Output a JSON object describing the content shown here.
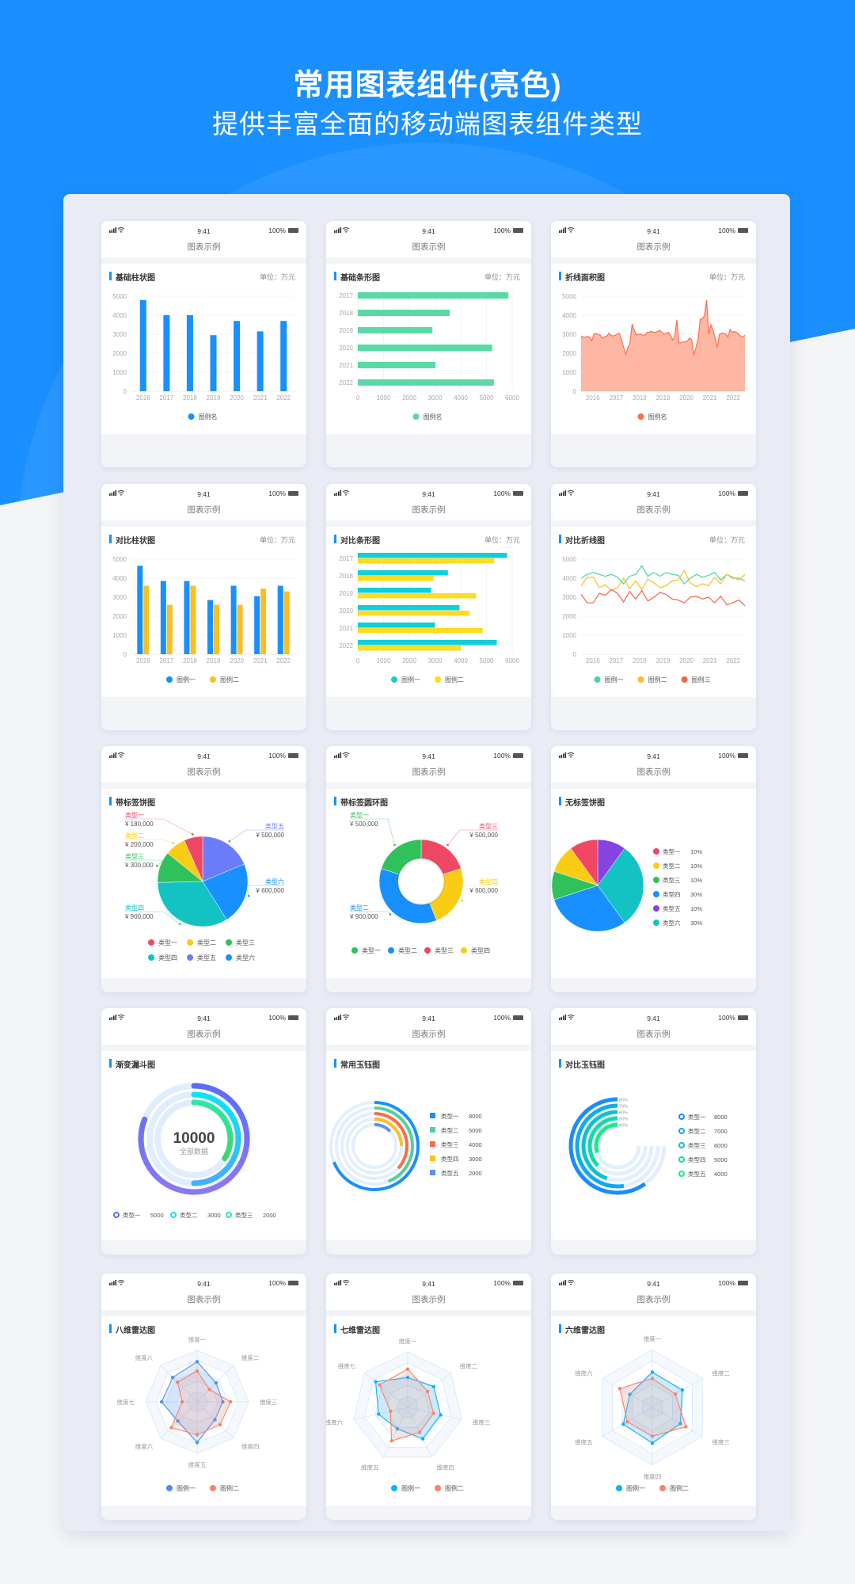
{
  "header": {
    "title": "常用图表组件(亮色)",
    "subtitle": "提供丰富全面的移动端图表组件类型"
  },
  "phone": {
    "time": "9:41",
    "battery": "100%",
    "nav_title": "图表示例"
  },
  "colors": {
    "brand": "#1890ff",
    "panel": "#e9ecf4"
  },
  "chart_data": [
    {
      "type": "bar",
      "title": "基础柱状图",
      "unit": "单位：万元",
      "categories": [
        "2016",
        "2017",
        "2018",
        "2019",
        "2020",
        "2021",
        "2022"
      ],
      "yticks": [
        "0",
        "1000",
        "2000",
        "3000",
        "4000",
        "5000"
      ],
      "ylim": [
        0,
        5000
      ],
      "series": [
        {
          "name": "图例名",
          "color": "#1890ff",
          "values": [
            4800,
            4000,
            4000,
            2950,
            3700,
            3150,
            3700
          ]
        }
      ]
    },
    {
      "type": "hbar",
      "title": "基础条形图",
      "unit": "单位：万元",
      "categories": [
        "2017",
        "2018",
        "2019",
        "2020",
        "2021",
        "2022"
      ],
      "xticks": [
        "0",
        "1000",
        "2000",
        "3000",
        "4000",
        "5000",
        "6000"
      ],
      "xlim": [
        0,
        6000
      ],
      "series": [
        {
          "name": "图例名",
          "color": "#5ad8a6",
          "values": [
            5850,
            3570,
            2900,
            5220,
            3020,
            5290
          ]
        }
      ]
    },
    {
      "type": "area",
      "title": "折线面积图",
      "unit": "单位：万元",
      "xlabels": [
        "2016",
        "2017",
        "2018",
        "2019",
        "2020",
        "2021",
        "2022"
      ],
      "yticks": [
        "0",
        "1000",
        "2000",
        "3000",
        "4000",
        "5000"
      ],
      "ylim": [
        0,
        5000
      ],
      "series": [
        {
          "name": "图例名",
          "color": "#ff6e4f",
          "fill": "#ffb6a3",
          "values": [
            2900,
            2850,
            2850,
            2880,
            2850,
            2650,
            3000,
            3050,
            2980,
            2950,
            2800,
            2870,
            2900,
            3050,
            2950,
            2900,
            2950,
            3000,
            3050,
            2700,
            2300,
            1950,
            2300,
            2550,
            3550,
            3200,
            2950,
            3000,
            3000,
            2950,
            2950,
            3100,
            3100,
            3150,
            3100,
            3100,
            3150,
            3200,
            3100,
            3000,
            3050,
            3100,
            2950,
            2700,
            2900,
            3750,
            2550,
            2550,
            2600,
            2600,
            2650,
            2800,
            2700,
            1900,
            2300,
            2800,
            3800,
            3800,
            4000,
            4800,
            3000,
            3500,
            3200,
            2800,
            2300,
            3000,
            3050,
            3050,
            3000,
            2850,
            3250,
            3100,
            3150,
            3100,
            3000,
            2900,
            2850,
            2950
          ]
        }
      ]
    },
    {
      "type": "bar",
      "title": "对比柱状图",
      "unit": "单位：万元",
      "categories": [
        "2016",
        "2017",
        "2018",
        "2019",
        "2020",
        "2021",
        "2022"
      ],
      "yticks": [
        "0",
        "1000",
        "2000",
        "3000",
        "4000",
        "5000"
      ],
      "ylim": [
        0,
        5000
      ],
      "series": [
        {
          "name": "图例一",
          "color": "#1890ff",
          "values": [
            4650,
            3850,
            3850,
            2850,
            3600,
            3050,
            3600
          ]
        },
        {
          "name": "图例二",
          "color": "#fbbf24",
          "values": [
            3600,
            2600,
            3600,
            2600,
            2600,
            3450,
            3300
          ]
        }
      ]
    },
    {
      "type": "hbar",
      "title": "对比条形图",
      "unit": "单位：万元",
      "categories": [
        "2017",
        "2018",
        "2019",
        "2020",
        "2021",
        "2022"
      ],
      "xticks": [
        "0",
        "1000",
        "2000",
        "3000",
        "4000",
        "5000",
        "6000"
      ],
      "xlim": [
        0,
        6000
      ],
      "series": [
        {
          "name": "图例一",
          "color": "#0fcfd9",
          "values": [
            5800,
            3500,
            2850,
            3950,
            3000,
            5400
          ]
        },
        {
          "name": "图例二",
          "color": "#ffdc1f",
          "values": [
            5300,
            2950,
            4600,
            4350,
            4850,
            4000
          ]
        }
      ]
    },
    {
      "type": "line",
      "title": "对比折线图",
      "unit": "单位：万元",
      "xlabels": [
        "2016",
        "2017",
        "2018",
        "2019",
        "2020",
        "2021",
        "2022"
      ],
      "yticks": [
        "0",
        "1000",
        "2000",
        "3000",
        "4000",
        "5000"
      ],
      "ylim": [
        0,
        5000
      ],
      "series": [
        {
          "name": "图例一",
          "color": "#4cd69a",
          "values": [
            4000,
            4200,
            4300,
            4200,
            4100,
            4200,
            4050,
            3700,
            4100,
            4200,
            4650,
            4100,
            4300,
            4100,
            4300,
            4200,
            4150,
            3700,
            4000,
            4200,
            4050,
            4150,
            4300,
            3900,
            4200,
            4000,
            4000,
            3850
          ]
        },
        {
          "name": "图例二",
          "color": "#fbbf24",
          "values": [
            3600,
            4050,
            4050,
            3500,
            3650,
            3350,
            3500,
            4000,
            3450,
            3850,
            3400,
            3950,
            3750,
            3500,
            3600,
            3850,
            3900,
            4400,
            3750,
            3550,
            3700,
            3600,
            4050,
            3700,
            4200,
            4050,
            3900,
            4200
          ]
        },
        {
          "name": "图例三",
          "color": "#f5634a",
          "values": [
            3150,
            2700,
            2700,
            3200,
            3100,
            3400,
            3200,
            2750,
            3300,
            2900,
            3350,
            2800,
            3000,
            3250,
            3150,
            2900,
            2850,
            2700,
            3000,
            3050,
            2900,
            3000,
            2700,
            3050,
            2600,
            2700,
            2850,
            2550
          ]
        }
      ]
    },
    {
      "type": "pie",
      "style": "labeled",
      "title": "带标签饼图",
      "slices": [
        {
          "label": "类型一",
          "value": 180000,
          "display": "¥ 180,000",
          "color": "#f04864"
        },
        {
          "label": "类型二",
          "value": 200000,
          "display": "¥ 200,000",
          "color": "#facc14"
        },
        {
          "label": "类型三",
          "value": 300000,
          "display": "¥ 300,000",
          "color": "#2fc25b"
        },
        {
          "label": "类型四",
          "value": 900000,
          "display": "¥ 900,000",
          "color": "#13c2c2"
        },
        {
          "label": "类型五",
          "value": 500000,
          "display": "¥ 500,000",
          "color": "#6b7cfb"
        },
        {
          "label": "类型六",
          "value": 600000,
          "display": "¥ 600,000",
          "color": "#1890ff"
        }
      ],
      "clockwise_order": [
        4,
        5,
        3,
        2,
        1,
        0
      ]
    },
    {
      "type": "donut",
      "style": "labeled",
      "title": "带标签圆环图",
      "slices": [
        {
          "label": "类型一",
          "value": 500000,
          "display": "¥ 500,000",
          "color": "#2fc25b"
        },
        {
          "label": "类型二",
          "value": 900000,
          "display": "¥ 900,000",
          "color": "#1890ff"
        },
        {
          "label": "类型三",
          "value": 500000,
          "display": "¥ 500,000",
          "color": "#f04864"
        },
        {
          "label": "类型四",
          "value": 600000,
          "display": "¥ 600,000",
          "color": "#facc14"
        }
      ],
      "clockwise_order": [
        2,
        3,
        1,
        0
      ]
    },
    {
      "type": "pie",
      "style": "plain",
      "title": "无标签饼图",
      "slices": [
        {
          "label": "类型一",
          "value": 10,
          "display": "10%",
          "color": "#f04864"
        },
        {
          "label": "类型二",
          "value": 10,
          "display": "10%",
          "color": "#facc14"
        },
        {
          "label": "类型三",
          "value": 10,
          "display": "10%",
          "color": "#2fc25b"
        },
        {
          "label": "类型四",
          "value": 30,
          "display": "30%",
          "color": "#1890ff"
        },
        {
          "label": "类型五",
          "value": 10,
          "display": "10%",
          "color": "#8543e0"
        },
        {
          "label": "类型六",
          "value": 30,
          "display": "30%",
          "color": "#13c2c2"
        }
      ],
      "clockwise_order": [
        4,
        5,
        3,
        2,
        1,
        0
      ]
    },
    {
      "type": "radial-funnel",
      "title": "渐变漏斗图",
      "center_value": "10000",
      "center_label": "全部数据",
      "items": [
        {
          "label": "类型一",
          "value": "5000",
          "progress": 0.81,
          "colors": [
            "#5b6cf8",
            "#8a78f7"
          ]
        },
        {
          "label": "类型二",
          "value": "3000",
          "progress": 0.5,
          "colors": [
            "#0be4f5",
            "#3fb0ff"
          ]
        },
        {
          "label": "类型三",
          "value": "2000",
          "progress": 0.34,
          "colors": [
            "#2ee8a8",
            "#3ed66a"
          ]
        }
      ]
    },
    {
      "type": "radial-bar",
      "title": "常用玉钰图",
      "items": [
        {
          "label": "类型一",
          "value": "8000",
          "progress": 0.69,
          "color": "#1890ff"
        },
        {
          "label": "类型二",
          "value": "5000",
          "progress": 0.44,
          "color": "#4fd29b"
        },
        {
          "label": "类型三",
          "value": "4000",
          "progress": 0.37,
          "color": "#ff6a4d"
        },
        {
          "label": "类型四",
          "value": "3000",
          "progress": 0.25,
          "color": "#fbbf24"
        },
        {
          "label": "类型五",
          "value": "2000",
          "progress": 0.13,
          "color": "#5b8ff9"
        }
      ]
    },
    {
      "type": "radial-bar-compare",
      "title": "对比玉钰图",
      "items": [
        {
          "label": "类型一",
          "value": "8000",
          "pct": "80%",
          "progress": 0.8,
          "color": "#1a8cff"
        },
        {
          "label": "类型二",
          "value": "7000",
          "pct": "70%",
          "progress": 0.7,
          "color": "#0eaaf5"
        },
        {
          "label": "类型三",
          "value": "6000",
          "pct": "60%",
          "progress": 0.6,
          "color": "#0dc3d0"
        },
        {
          "label": "类型四",
          "value": "5000",
          "pct": "50%",
          "progress": 0.5,
          "color": "#0fdca8"
        },
        {
          "label": "类型五",
          "value": "4000",
          "pct": "40%",
          "progress": 0.4,
          "color": "#14f07f"
        }
      ]
    },
    {
      "type": "radar",
      "title": "八维雷达图",
      "max": 100,
      "axes": [
        "维度一",
        "维度二",
        "维度三",
        "维度四",
        "维度五",
        "维度六",
        "维度七",
        "维度八"
      ],
      "series": [
        {
          "name": "图例一",
          "color": "#4a90f0",
          "values": [
            78,
            52,
            50,
            49,
            79,
            53,
            69,
            67
          ]
        },
        {
          "name": "图例二",
          "color": "#f7846a",
          "values": [
            60,
            34,
            65,
            63,
            64,
            71,
            29,
            54
          ]
        }
      ]
    },
    {
      "type": "radar",
      "title": "七维雷达图",
      "max": 100,
      "axes": [
        "维度一",
        "维度二",
        "维度三",
        "维度四",
        "维度五",
        "维度六",
        "维度七"
      ],
      "series": [
        {
          "name": "图例一",
          "color": "#0fb0ff",
          "values": [
            54,
            60,
            61,
            63,
            43,
            54,
            74
          ]
        },
        {
          "name": "图例二",
          "color": "#f7846a",
          "values": [
            69,
            46,
            48,
            50,
            67,
            32,
            65
          ]
        }
      ]
    },
    {
      "type": "radar",
      "title": "六维雷达图",
      "max": 100,
      "axes": [
        "维度一",
        "维度二",
        "维度三",
        "维度四",
        "维度五",
        "维度六"
      ],
      "series": [
        {
          "name": "图例一",
          "color": "#0fb0ff",
          "values": [
            61,
            60,
            56,
            62,
            58,
            45
          ]
        },
        {
          "name": "图例二",
          "color": "#f7846a",
          "values": [
            50,
            46,
            67,
            50,
            50,
            65
          ]
        }
      ]
    }
  ]
}
